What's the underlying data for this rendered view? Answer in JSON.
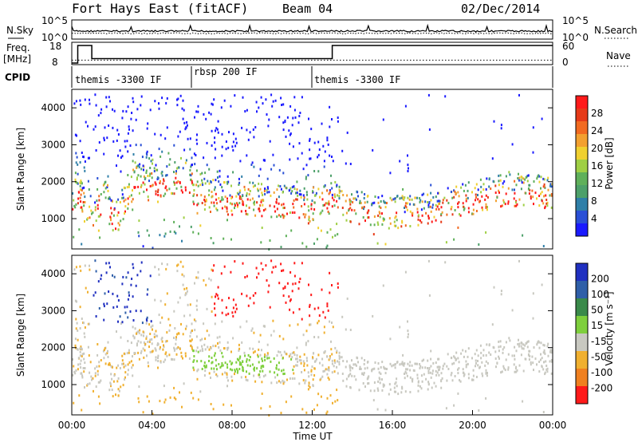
{
  "header": {
    "title": "Fort Hays East (fitACF)",
    "beam": "Beam 04",
    "date": "02/Dec/2014"
  },
  "chart_data": [
    {
      "type": "line",
      "name": "noise-panel",
      "left_label": "N.Sky",
      "right_label": "N.Search",
      "left_ticks": [
        "10^5",
        "10^0"
      ],
      "right_ticks": [
        "10^5",
        "10^0"
      ]
    },
    {
      "type": "line",
      "name": "frequency-panel",
      "left_label_lines": [
        "Freq.",
        "[MHz]"
      ],
      "left_ticks": [
        "18",
        "8"
      ],
      "right_label": "Nave",
      "right_ticks": [
        "60",
        "0"
      ],
      "freq_series": {
        "x": [
          0,
          0.3,
          0.3,
          1.0,
          1.0,
          13.0,
          13.0,
          24.0
        ],
        "y": [
          8,
          8,
          18,
          18,
          10.5,
          10.5,
          18,
          18
        ]
      },
      "nave_level": 10
    },
    {
      "type": "table",
      "name": "cpid-panel",
      "label": "CPID",
      "segments": [
        {
          "start": 0,
          "end": 6,
          "text": "themis -3300 IF"
        },
        {
          "start": 6,
          "end": 12,
          "text": "rbsp 200 IF"
        },
        {
          "start": 12,
          "end": 24,
          "text": "themis -3300 IF"
        }
      ]
    },
    {
      "type": "heatmap",
      "name": "power-panel",
      "ylabel": "Slant Range [km]",
      "yticks": [
        1000,
        2000,
        3000,
        4000
      ],
      "ylim": [
        180,
        4500
      ],
      "xlim": [
        0,
        24
      ],
      "colorbar": {
        "label": "Power [dB]",
        "ticks": [
          "4",
          "8",
          "12",
          "16",
          "20",
          "24",
          "28"
        ],
        "colors": [
          "#1a1aff",
          "#2a50d6",
          "#2f7fa8",
          "#4da06a",
          "#5fb05a",
          "#9fcf44",
          "#f0d030",
          "#f3a030",
          "#f26a20",
          "#e63a18",
          "#ff1a1a"
        ]
      }
    },
    {
      "type": "heatmap",
      "name": "velocity-panel",
      "ylabel": "Slant Range [km]",
      "yticks": [
        1000,
        2000,
        3000,
        4000
      ],
      "ylim": [
        180,
        4500
      ],
      "xlim": [
        0,
        24
      ],
      "xticks": [
        "00:00",
        "04:00",
        "08:00",
        "12:00",
        "16:00",
        "20:00",
        "00:00"
      ],
      "xlabel": "Time UT",
      "colorbar": {
        "label": "Velocity [m s⁻¹]",
        "ticks": [
          "200",
          "100",
          "50",
          "15",
          "-15",
          "-50",
          "-100",
          "-200"
        ],
        "colors": [
          "#2030c0",
          "#2f5fa8",
          "#3a8a4a",
          "#7ecf3c",
          "#c8c8c0",
          "#f0b030",
          "#f08020",
          "#ff1a1a"
        ]
      }
    }
  ]
}
